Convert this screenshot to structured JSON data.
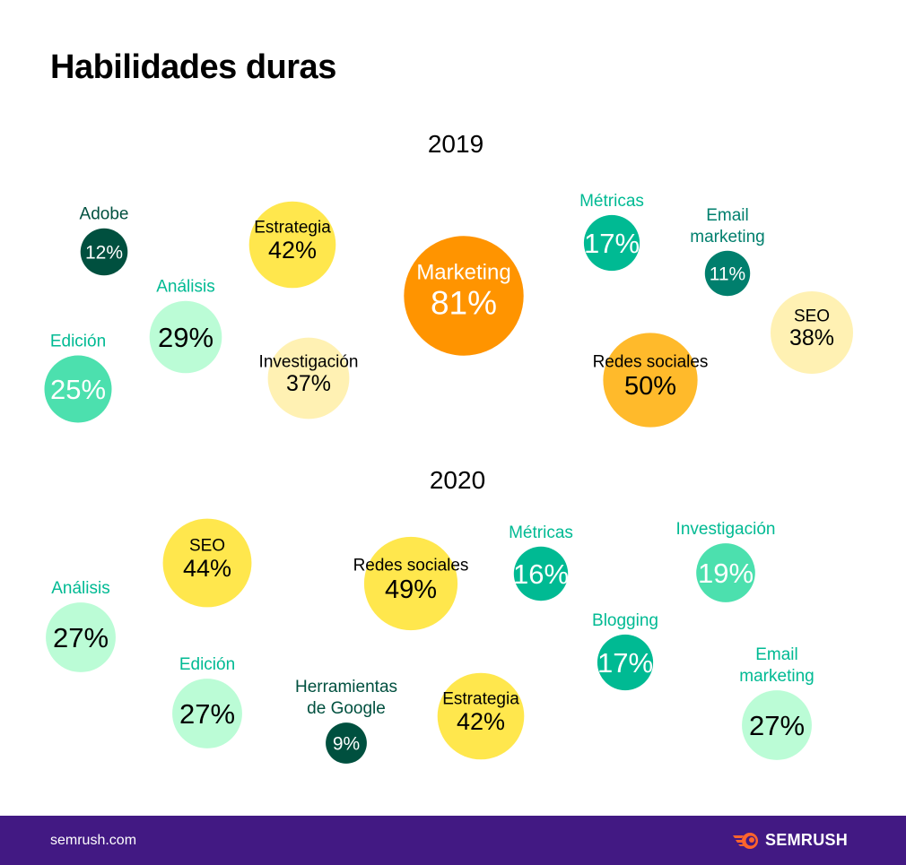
{
  "header": {
    "title": "Habilidades duras"
  },
  "footer": {
    "site": "semrush.com",
    "brand": "SEMRUSH",
    "brand_icon": "semrush-fireball-icon"
  },
  "colors": {
    "dark_green": "#00503F",
    "teal": "#007F6D",
    "green": "#00BA93",
    "mint": "#4CE0AE",
    "pale_mint": "#BBFCD6",
    "orange": "#FF9400",
    "amber": "#FFBA2B",
    "yellow": "#FFE74D",
    "pale_yellow": "#FFF1B3",
    "footer_bg": "#421983"
  },
  "chart_data": {
    "type": "bubble",
    "title": "Habilidades duras",
    "unit": "%",
    "groups": [
      {
        "year": "2019",
        "items": [
          {
            "label": "Adobe",
            "value": 12,
            "label_position": "outside",
            "color": "dark_green"
          },
          {
            "label": "Estrategia",
            "value": 42,
            "label_position": "inside",
            "color": "yellow"
          },
          {
            "label": "Marketing",
            "value": 81,
            "label_position": "inside",
            "color": "orange"
          },
          {
            "label": "Métricas",
            "value": 17,
            "label_position": "outside",
            "color": "green"
          },
          {
            "label": "Email marketing",
            "value": 11,
            "label_position": "outside",
            "color": "teal"
          },
          {
            "label": "Análisis",
            "value": 29,
            "label_position": "outside",
            "color": "pale_mint"
          },
          {
            "label": "SEO",
            "value": 38,
            "label_position": "inside",
            "color": "pale_yellow"
          },
          {
            "label": "Edición",
            "value": 25,
            "label_position": "outside",
            "color": "mint"
          },
          {
            "label": "Investigación",
            "value": 37,
            "label_position": "inside",
            "color": "pale_yellow"
          },
          {
            "label": "Redes sociales",
            "value": 50,
            "label_position": "inside",
            "color": "amber"
          }
        ]
      },
      {
        "year": "2020",
        "items": [
          {
            "label": "SEO",
            "value": 44,
            "label_position": "inside",
            "color": "yellow"
          },
          {
            "label": "Redes sociales",
            "value": 49,
            "label_position": "inside",
            "color": "yellow"
          },
          {
            "label": "Métricas",
            "value": 16,
            "label_position": "outside",
            "color": "green"
          },
          {
            "label": "Investigación",
            "value": 19,
            "label_position": "outside",
            "color": "mint"
          },
          {
            "label": "Análisis",
            "value": 27,
            "label_position": "outside",
            "color": "pale_mint"
          },
          {
            "label": "Blogging",
            "value": 17,
            "label_position": "outside",
            "color": "green"
          },
          {
            "label": "Edición",
            "value": 27,
            "label_position": "outside",
            "color": "pale_mint"
          },
          {
            "label": "Herramientas de Google",
            "value": 9,
            "label_position": "outside",
            "color": "dark_green"
          },
          {
            "label": "Estrategia",
            "value": 42,
            "label_position": "inside",
            "color": "yellow"
          },
          {
            "label": "Email marketing",
            "value": 27,
            "label_position": "outside",
            "color": "pale_mint"
          }
        ]
      }
    ]
  }
}
